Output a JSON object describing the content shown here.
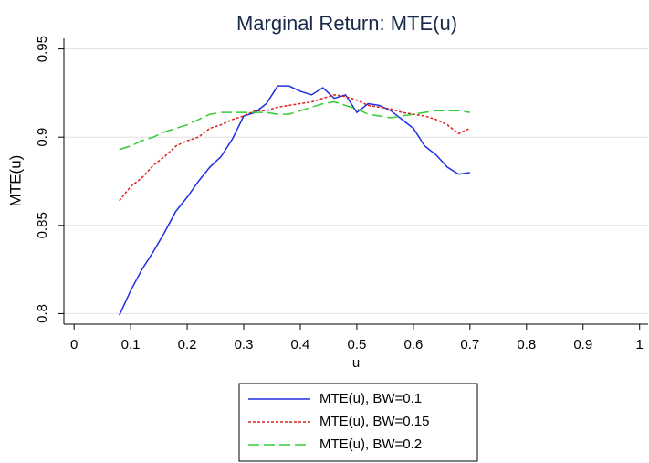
{
  "chart_data": {
    "type": "line",
    "title": "Marginal Return: MTE(u)",
    "x_label": "u",
    "y_label": "MTE(u)",
    "x": [
      0.08,
      0.1,
      0.12,
      0.14,
      0.16,
      0.18,
      0.2,
      0.22,
      0.24,
      0.26,
      0.28,
      0.3,
      0.32,
      0.34,
      0.36,
      0.38,
      0.4,
      0.42,
      0.44,
      0.46,
      0.48,
      0.5,
      0.52,
      0.54,
      0.56,
      0.58,
      0.6,
      0.62,
      0.64,
      0.66,
      0.68,
      0.7
    ],
    "series": [
      {
        "name": "MTE(u), BW=0.1",
        "color": "#1f2fe0",
        "dash": "solid",
        "values": [
          0.799,
          0.813,
          0.825,
          0.835,
          0.846,
          0.858,
          0.866,
          0.875,
          0.883,
          0.889,
          0.899,
          0.912,
          0.914,
          0.919,
          0.929,
          0.929,
          0.926,
          0.924,
          0.928,
          0.922,
          0.924,
          0.914,
          0.919,
          0.918,
          0.915,
          0.91,
          0.905,
          0.895,
          0.89,
          0.883,
          0.879,
          0.88
        ]
      },
      {
        "name": "MTE(u), BW=0.15",
        "color": "#dd2020",
        "dash": "dot",
        "values": [
          0.864,
          0.872,
          0.877,
          0.884,
          0.889,
          0.895,
          0.898,
          0.9,
          0.905,
          0.907,
          0.91,
          0.912,
          0.915,
          0.915,
          0.917,
          0.918,
          0.919,
          0.92,
          0.922,
          0.924,
          0.923,
          0.921,
          0.918,
          0.917,
          0.916,
          0.914,
          0.913,
          0.912,
          0.91,
          0.907,
          0.902,
          0.905
        ]
      },
      {
        "name": "MTE(u), BW=0.2",
        "color": "#33cc33",
        "dash": "dash",
        "values": [
          0.893,
          0.895,
          0.898,
          0.9,
          0.903,
          0.905,
          0.907,
          0.91,
          0.913,
          0.914,
          0.914,
          0.914,
          0.914,
          0.914,
          0.913,
          0.913,
          0.915,
          0.917,
          0.919,
          0.92,
          0.918,
          0.916,
          0.913,
          0.912,
          0.911,
          0.912,
          0.913,
          0.914,
          0.915,
          0.915,
          0.915,
          0.914
        ]
      }
    ],
    "xlim": [
      -0.018,
      1.015
    ],
    "xticks": [
      0,
      0.1,
      0.2,
      0.3,
      0.4,
      0.5,
      0.6,
      0.7,
      0.8,
      0.9,
      1
    ],
    "ylim": [
      0.794,
      0.956
    ],
    "yticks": [
      0.8,
      0.85,
      0.9,
      0.95
    ],
    "grid": true,
    "legend": "bottom"
  }
}
